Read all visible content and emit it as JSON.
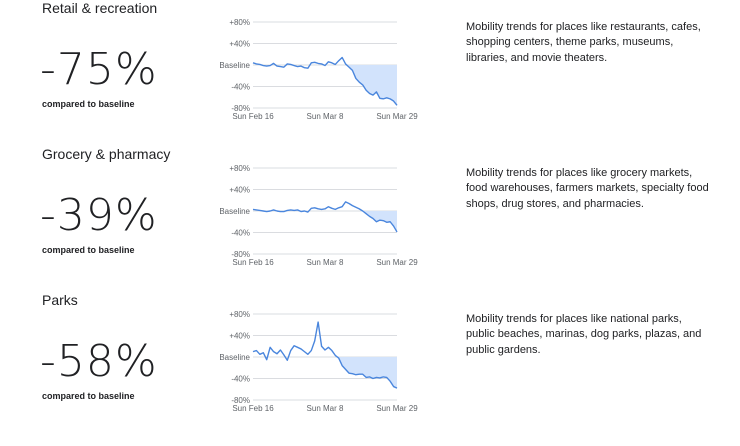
{
  "categories": [
    {
      "title": "Retail & recreation",
      "value": "-75%",
      "compared": "compared to baseline",
      "description": "Mobility trends for places like restaurants, cafes, shopping centers, theme parks, museums, libraries, and movie theaters."
    },
    {
      "title": "Grocery & pharmacy",
      "value": "-39%",
      "compared": "compared to baseline",
      "description": "Mobility trends for places like grocery markets, food warehouses, farmers markets, specialty food shops, drug stores, and pharmacies."
    },
    {
      "title": "Parks",
      "value": "-58%",
      "compared": "compared to baseline",
      "description": "Mobility trends for places like national parks, public beaches, marinas, dog parks, plazas, and public gardens."
    }
  ],
  "chart_data": [
    {
      "type": "line",
      "x": [
        "Feb 16",
        "Feb 17",
        "Feb 18",
        "Feb 19",
        "Feb 20",
        "Feb 21",
        "Feb 22",
        "Feb 23",
        "Feb 24",
        "Feb 25",
        "Feb 26",
        "Feb 27",
        "Feb 28",
        "Feb 29",
        "Mar 1",
        "Mar 2",
        "Mar 3",
        "Mar 4",
        "Mar 5",
        "Mar 6",
        "Mar 7",
        "Mar 8",
        "Mar 9",
        "Mar 10",
        "Mar 11",
        "Mar 12",
        "Mar 13",
        "Mar 14",
        "Mar 15",
        "Mar 16",
        "Mar 17",
        "Mar 18",
        "Mar 19",
        "Mar 20",
        "Mar 21",
        "Mar 22",
        "Mar 23",
        "Mar 24",
        "Mar 25",
        "Mar 26",
        "Mar 27",
        "Mar 28",
        "Mar 29"
      ],
      "series": [
        {
          "values": [
            4,
            2,
            1,
            -1,
            -2,
            -1,
            3,
            -2,
            -3,
            -4,
            2,
            1,
            -1,
            -3,
            -2,
            -5,
            -6,
            4,
            5,
            3,
            2,
            -1,
            6,
            4,
            1,
            8,
            14,
            2,
            -4,
            -10,
            -25,
            -32,
            -37,
            -47,
            -53,
            -56,
            -50,
            -62,
            -63,
            -61,
            -63,
            -67,
            -75
          ]
        }
      ],
      "baseline": 0,
      "ylim": [
        -80,
        80
      ],
      "yticks": [
        "+80%",
        "+40%",
        "Baseline",
        "-40%",
        "-80%"
      ],
      "xticks": [
        "Sun Feb 16",
        "Sun Mar 8",
        "Sun Mar 29"
      ]
    },
    {
      "type": "line",
      "x": [
        "Feb 16",
        "Feb 17",
        "Feb 18",
        "Feb 19",
        "Feb 20",
        "Feb 21",
        "Feb 22",
        "Feb 23",
        "Feb 24",
        "Feb 25",
        "Feb 26",
        "Feb 27",
        "Feb 28",
        "Feb 29",
        "Mar 1",
        "Mar 2",
        "Mar 3",
        "Mar 4",
        "Mar 5",
        "Mar 6",
        "Mar 7",
        "Mar 8",
        "Mar 9",
        "Mar 10",
        "Mar 11",
        "Mar 12",
        "Mar 13",
        "Mar 14",
        "Mar 15",
        "Mar 16",
        "Mar 17",
        "Mar 18",
        "Mar 19",
        "Mar 20",
        "Mar 21",
        "Mar 22",
        "Mar 23",
        "Mar 24",
        "Mar 25",
        "Mar 26",
        "Mar 27",
        "Mar 28",
        "Mar 29"
      ],
      "series": [
        {
          "values": [
            3,
            2,
            1,
            0,
            -1,
            0,
            2,
            0,
            -1,
            -1,
            1,
            2,
            1,
            2,
            -1,
            0,
            -2,
            5,
            6,
            4,
            3,
            4,
            8,
            5,
            3,
            6,
            8,
            17,
            14,
            10,
            7,
            4,
            0,
            -5,
            -10,
            -14,
            -20,
            -17,
            -18,
            -21,
            -20,
            -28,
            -39
          ]
        }
      ],
      "baseline": 0,
      "ylim": [
        -80,
        80
      ],
      "yticks": [
        "+80%",
        "+40%",
        "Baseline",
        "-40%",
        "-80%"
      ],
      "xticks": [
        "Sun Feb 16",
        "Sun Mar 8",
        "Sun Mar 29"
      ]
    },
    {
      "type": "line",
      "x": [
        "Feb 16",
        "Feb 17",
        "Feb 18",
        "Feb 19",
        "Feb 20",
        "Feb 21",
        "Feb 22",
        "Feb 23",
        "Feb 24",
        "Feb 25",
        "Feb 26",
        "Feb 27",
        "Feb 28",
        "Feb 29",
        "Mar 1",
        "Mar 2",
        "Mar 3",
        "Mar 4",
        "Mar 5",
        "Mar 6",
        "Mar 7",
        "Mar 8",
        "Mar 9",
        "Mar 10",
        "Mar 11",
        "Mar 12",
        "Mar 13",
        "Mar 14",
        "Mar 15",
        "Mar 16",
        "Mar 17",
        "Mar 18",
        "Mar 19",
        "Mar 20",
        "Mar 21",
        "Mar 22",
        "Mar 23",
        "Mar 24",
        "Mar 25",
        "Mar 26",
        "Mar 27",
        "Mar 28",
        "Mar 29"
      ],
      "series": [
        {
          "values": [
            10,
            12,
            5,
            8,
            -5,
            18,
            10,
            6,
            13,
            4,
            -6,
            12,
            21,
            18,
            15,
            10,
            5,
            12,
            30,
            65,
            20,
            13,
            18,
            12,
            3,
            -2,
            -16,
            -23,
            -30,
            -31,
            -33,
            -32,
            -32,
            -38,
            -37,
            -40,
            -38,
            -39,
            -37,
            -38,
            -45,
            -55,
            -58
          ]
        }
      ],
      "baseline": 0,
      "ylim": [
        -80,
        80
      ],
      "yticks": [
        "+80%",
        "+40%",
        "Baseline",
        "-40%",
        "-80%"
      ],
      "xticks": [
        "Sun Feb 16",
        "Sun Mar 8",
        "Sun Mar 29"
      ]
    }
  ],
  "colors": {
    "line": "#4a86dd",
    "fill": "#d2e3fc",
    "grid": "#dadce0",
    "text": "#202124",
    "tick": "#5f6368"
  }
}
